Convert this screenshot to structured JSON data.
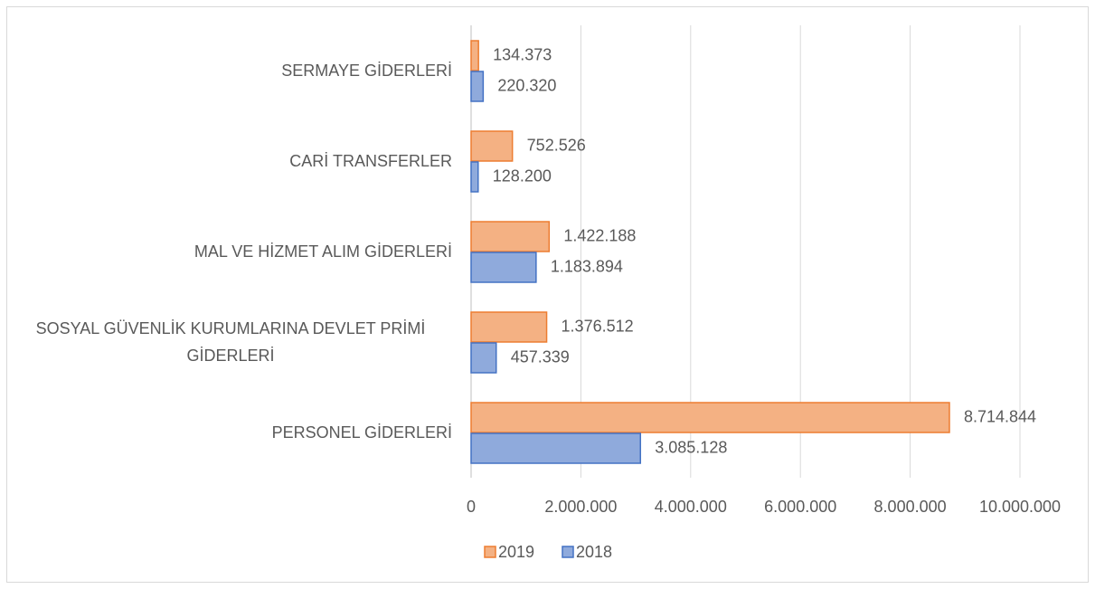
{
  "chart_data": {
    "type": "hbar",
    "categories": [
      "SERMAYE GİDERLERİ",
      "CARİ TRANSFERLER",
      "MAL VE HİZMET ALIM GİDERLERİ",
      "SOSYAL GÜVENLİK KURUMLARINA DEVLET PRİMİ GİDERLERİ",
      "PERSONEL GİDERLERİ"
    ],
    "series": [
      {
        "name": "2019",
        "color": "#f4b183",
        "edge": "#ed7d31",
        "values": [
          134373,
          752526,
          1422188,
          1376512,
          8714844
        ],
        "value_labels": [
          "134.373",
          "752.526",
          "1.422.188",
          "1.376.512",
          "8.714.844"
        ]
      },
      {
        "name": "2018",
        "color": "#8faadc",
        "edge": "#4472c4",
        "values": [
          220320,
          128200,
          1183894,
          457339,
          3085128
        ],
        "value_labels": [
          "220.320",
          "128.200",
          "1.183.894",
          "457.339",
          "3.085.128"
        ]
      }
    ],
    "xlim": [
      0,
      10000000
    ],
    "xticks": [
      0,
      {
        "value": 2000000,
        "label": "2.000.000"
      },
      {
        "value": 4000000,
        "label": "4.000.000"
      },
      {
        "value": 6000000,
        "label": "6.000.000"
      },
      {
        "value": 8000000,
        "label": "8.000.000"
      },
      {
        "value": 10000000,
        "label": "10.000.000"
      }
    ],
    "grid": true,
    "legend": "bottom"
  }
}
